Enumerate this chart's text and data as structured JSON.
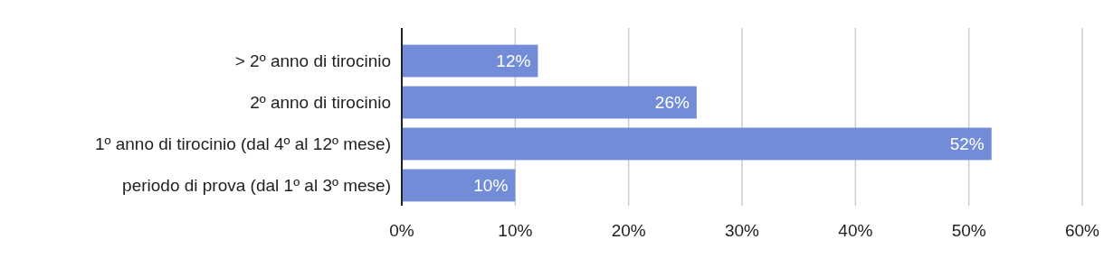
{
  "chart_data": {
    "type": "bar",
    "orientation": "horizontal",
    "categories": [
      "> 2º anno di tirocinio",
      "2º anno di tirocinio",
      "1º anno di tirocinio (dal 4º al 12º mese)",
      "periodo di prova (dal 1º al 3º mese)"
    ],
    "values": [
      12,
      26,
      52,
      10
    ],
    "value_labels": [
      "12%",
      "26%",
      "52%",
      "10%"
    ],
    "color": "#728cd8",
    "xlim": [
      0,
      60
    ],
    "xticks": [
      {
        "value": 0,
        "label": "0%"
      },
      {
        "value": 10,
        "label": "10%"
      },
      {
        "value": 20,
        "label": "20%"
      },
      {
        "value": 30,
        "label": "30%"
      },
      {
        "value": 40,
        "label": "40%"
      },
      {
        "value": 50,
        "label": "50%"
      },
      {
        "value": 60,
        "label": "60%"
      }
    ],
    "grid": "x"
  }
}
